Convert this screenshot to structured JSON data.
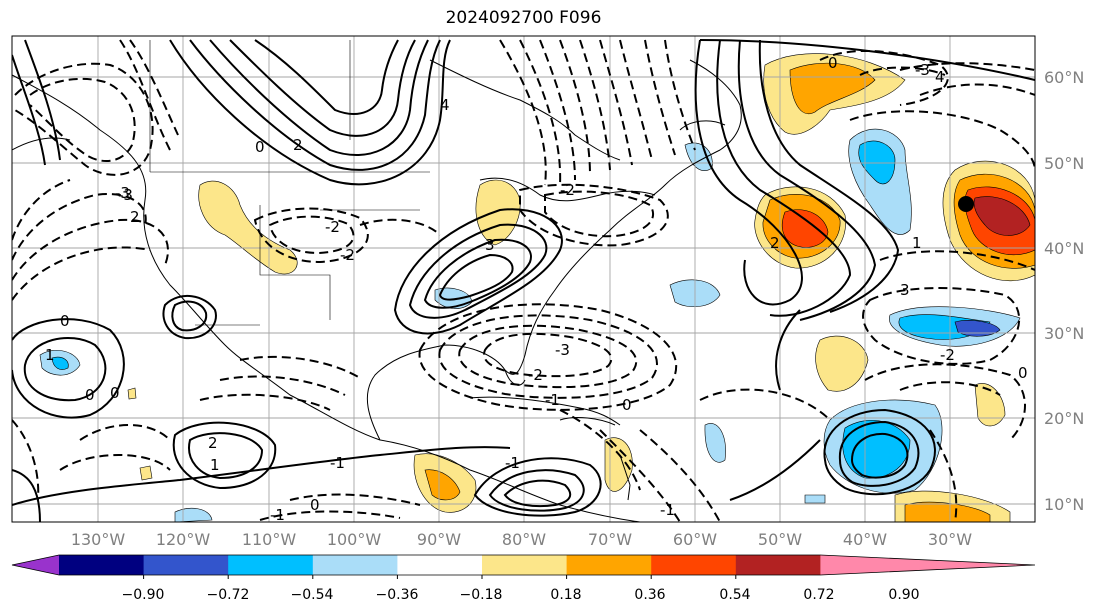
{
  "title": "2024092700 F096",
  "map": {
    "lon_labels": [
      "130°W",
      "120°W",
      "110°W",
      "100°W",
      "90°W",
      "80°W",
      "70°W",
      "60°W",
      "50°W",
      "40°W",
      "30°W"
    ],
    "lat_labels": [
      "60°N",
      "50°N",
      "40°N",
      "30°N",
      "20°N",
      "10°N"
    ],
    "contour_labels": [
      "0",
      "-2",
      "-3",
      "-2",
      "2",
      "-1",
      "0",
      "-3",
      "-2",
      "-2",
      "2",
      "3",
      "0",
      "-3",
      "-2",
      "-1",
      "0",
      "1",
      "-1",
      "-1",
      "1",
      "2",
      "0",
      "-1",
      "0",
      "3",
      "4",
      "0",
      "1",
      "-3",
      "4",
      "0",
      "2"
    ],
    "marker": "filled-circle"
  },
  "colorbar": {
    "tick_labels": [
      "−0.90",
      "−0.72",
      "−0.54",
      "−0.36",
      "−0.18",
      "0.18",
      "0.36",
      "0.54",
      "0.72",
      "0.90"
    ],
    "colors": [
      "#9933cc",
      "#000080",
      "#3355cc",
      "#00bfff",
      "#aaddf8",
      "#ffffff",
      "#fce68a",
      "#ffa500",
      "#ff4500",
      "#b22222",
      "#ff88aa"
    ]
  }
}
